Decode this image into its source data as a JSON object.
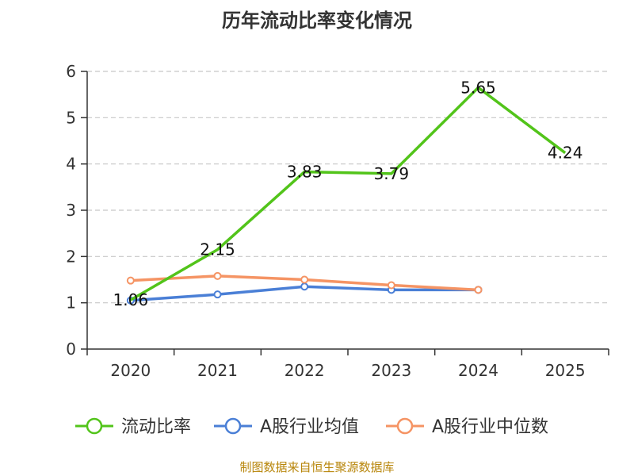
{
  "chart_data": {
    "type": "line",
    "title": "历年流动比率变化情况",
    "categories": [
      "2020",
      "2021",
      "2022",
      "2023",
      "2024",
      "2025"
    ],
    "ylim": [
      0,
      6
    ],
    "yticks": [
      0,
      1,
      2,
      3,
      4,
      5,
      6
    ],
    "grid": true,
    "legend_position": "bottom",
    "series": [
      {
        "name": "流动比率",
        "color": "#52c41a",
        "values": [
          1.06,
          2.15,
          3.83,
          3.79,
          5.65,
          4.24
        ],
        "labels": [
          "1.06",
          "2.15",
          "3.83",
          "3.79",
          "5.65",
          "4.24"
        ],
        "show_labels": true,
        "show_markers": false
      },
      {
        "name": "A股行业均值",
        "color": "#4a7fd6",
        "values": [
          1.05,
          1.18,
          1.35,
          1.28,
          1.28,
          null
        ],
        "show_labels": false,
        "show_markers": true
      },
      {
        "name": "A股行业中位数",
        "color": "#f59464",
        "values": [
          1.48,
          1.58,
          1.5,
          1.38,
          1.28,
          null
        ],
        "show_labels": false,
        "show_markers": true
      }
    ]
  },
  "source_note": "制图数据来自恒生聚源数据库"
}
